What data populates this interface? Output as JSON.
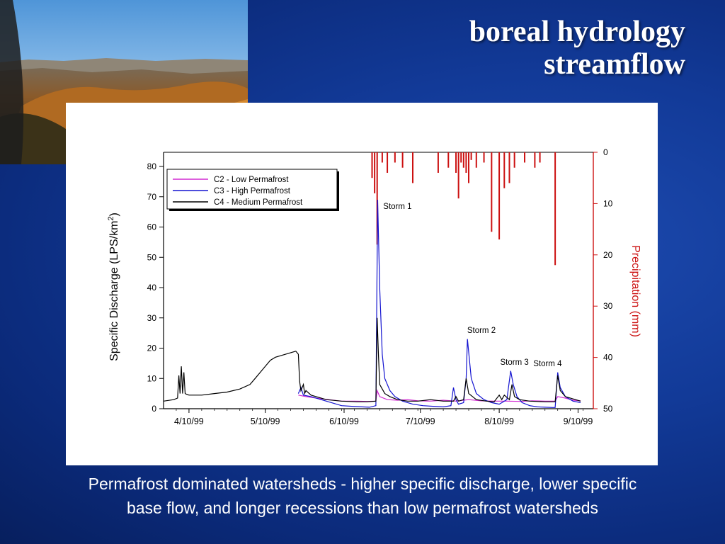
{
  "slide": {
    "title_line1": "boreal hydrology",
    "title_line2": "streamflow",
    "caption_line1": "Permafrost dominated watersheds - higher specific discharge, lower specific",
    "caption_line2": "base flow, and longer recessions than low permafrost watersheds"
  },
  "colors": {
    "c2": "#d22ad2",
    "c3": "#1414d0",
    "c4": "#000000",
    "precip": "#cc1111"
  },
  "chart_data": {
    "type": "line",
    "ylabel": "Specific Discharge (LPS/km²)",
    "ylabel_main": "Specific Discharge (LPS/km",
    "ylabel_sup": "2",
    "ylabel_tail": ")",
    "y2label": "Precipitation (mm)",
    "ylim": [
      0,
      80
    ],
    "y2lim": [
      0,
      50
    ],
    "y2_inverted": true,
    "xlim": [
      -10,
      159
    ],
    "x_ticks": [
      {
        "x": 0,
        "label": "4/10/99"
      },
      {
        "x": 30,
        "label": "5/10/99"
      },
      {
        "x": 61,
        "label": "6/10/99"
      },
      {
        "x": 91,
        "label": "7/10/99"
      },
      {
        "x": 122,
        "label": "8/10/99"
      },
      {
        "x": 153,
        "label": "9/10/99"
      }
    ],
    "y_ticks": [
      0,
      10,
      20,
      30,
      40,
      50,
      60,
      70,
      80
    ],
    "y2_ticks": [
      0,
      10,
      20,
      30,
      40,
      50
    ],
    "legend": {
      "position": "top-left",
      "entries": [
        {
          "key": "c2",
          "label": "C2 - Low Permafrost"
        },
        {
          "key": "c3",
          "label": "C3 - High Permafrost"
        },
        {
          "key": "c4",
          "label": "C4 - Medium Permafrost"
        }
      ]
    },
    "annotations": [
      {
        "label": "Storm 1",
        "x": 82,
        "y": 66
      },
      {
        "label": "Storm 2",
        "x": 115,
        "y": 25
      },
      {
        "label": "Storm 3",
        "x": 128,
        "y": 14.5
      },
      {
        "label": "Storm 4",
        "x": 141,
        "y": 14
      }
    ],
    "series": [
      {
        "key": "c2",
        "name": "C2 - Low Permafrost",
        "x": [
          43,
          46,
          50,
          55,
          60,
          65,
          70,
          73.5,
          74,
          75,
          78,
          82,
          86,
          90,
          95,
          100,
          105,
          110,
          115,
          120,
          125,
          130,
          135,
          140,
          144,
          145,
          148,
          151,
          154
        ],
        "y": [
          4.5,
          4,
          3.5,
          3,
          2.5,
          2.5,
          2.4,
          2.5,
          6,
          4,
          3,
          2.8,
          3,
          2.6,
          2.5,
          2.8,
          2.5,
          3,
          2.6,
          2.5,
          2.5,
          2.4,
          2.6,
          2.5,
          2.5,
          4,
          3.5,
          2.8,
          2.6
        ]
      },
      {
        "key": "c3",
        "name": "C3 - High Permafrost",
        "x": [
          43,
          44,
          45,
          48,
          52,
          56,
          60,
          64,
          68,
          71,
          73.5,
          74.2,
          75,
          76,
          77,
          79,
          81,
          84,
          88,
          92,
          96,
          100,
          103,
          104,
          105,
          106,
          108,
          109,
          109.5,
          111,
          113,
          116,
          119,
          122,
          125,
          126.5,
          127.5,
          129,
          131,
          134,
          137,
          140,
          143,
          144,
          145,
          146,
          148,
          151,
          154
        ],
        "y": [
          5,
          7,
          4.5,
          4,
          3,
          2,
          1,
          0.8,
          0.6,
          0.5,
          1,
          69,
          40,
          18,
          10,
          6,
          4,
          2.5,
          1.5,
          1,
          0.8,
          0.6,
          1,
          7,
          3,
          1.5,
          2,
          10,
          23,
          10,
          5,
          3,
          2,
          1.5,
          3,
          12.5,
          8,
          4,
          2,
          1,
          0.6,
          0.5,
          0.4,
          0.4,
          12,
          7,
          4,
          2.5,
          2
        ]
      },
      {
        "key": "c4",
        "name": "C4 - Medium Permafrost",
        "x": [
          -10,
          -6,
          -4.5,
          -4,
          -3.5,
          -3,
          -2.5,
          -2,
          -1.5,
          -1,
          0,
          5,
          10,
          15,
          20,
          24,
          26,
          28,
          30,
          32,
          34,
          36,
          38,
          40,
          42,
          43,
          43.5,
          44,
          45,
          45.5,
          46,
          48,
          50,
          54,
          60,
          66,
          70,
          73.5,
          74,
          74.5,
          75,
          77,
          79,
          82,
          86,
          90,
          95,
          100,
          104,
          105,
          106,
          108,
          109,
          110,
          113,
          117,
          120,
          122,
          123,
          124,
          126,
          127,
          128,
          130,
          134,
          140,
          144,
          145,
          146,
          148,
          152,
          154
        ],
        "y": [
          2.5,
          3,
          3.5,
          11,
          5,
          14,
          5,
          12,
          5,
          4.8,
          4.5,
          4.5,
          5,
          5.5,
          6.5,
          8,
          10,
          12,
          14,
          16,
          17,
          17.5,
          18,
          18.5,
          19,
          18,
          9,
          6,
          8,
          5,
          6,
          4.5,
          4,
          3,
          2.5,
          2.3,
          2.3,
          2.5,
          30,
          18,
          8,
          5,
          4,
          3,
          2.5,
          2.5,
          3,
          2.5,
          2.5,
          4,
          2.5,
          3,
          10,
          5,
          3,
          2.5,
          2.3,
          4.5,
          3,
          4.5,
          3,
          8,
          4,
          3,
          2.5,
          2.3,
          2.3,
          11,
          6,
          4,
          3,
          2.5
        ]
      },
      {
        "key": "precip",
        "name": "Precipitation (mm)",
        "type": "bar",
        "x": [
          72,
          73,
          74,
          76,
          78,
          81,
          84,
          88,
          98,
          102,
          105,
          106,
          107,
          108,
          109,
          110,
          111,
          113,
          116,
          119,
          122,
          124,
          126,
          128,
          132,
          136,
          138,
          144
        ],
        "y": [
          5,
          8,
          18,
          2,
          4,
          2,
          3,
          6,
          4,
          3,
          4,
          9,
          2,
          3,
          4,
          6,
          1.5,
          3,
          2,
          15.5,
          17,
          7,
          6,
          3,
          2,
          3,
          2,
          22
        ]
      }
    ]
  }
}
